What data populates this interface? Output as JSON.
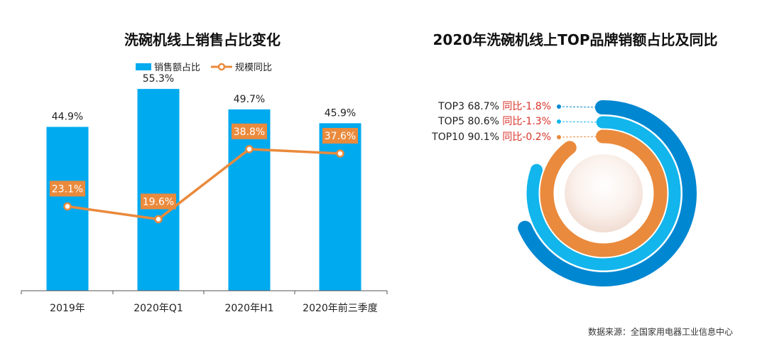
{
  "colors": {
    "blue_bar": "#00AAEF",
    "orange": "#EA8A3C",
    "ring_outer": "#0087D1",
    "ring_middle": "#12B5EC",
    "ring_inner": "#EA8A3C",
    "yoy_red": "#D9342B",
    "text": "#222222"
  },
  "chart_data": [
    {
      "type": "bar",
      "title": "洗碗机线上销售占比变化",
      "categories": [
        "2019年",
        "2020年Q1",
        "2020年H1",
        "2020年前三季度"
      ],
      "series": [
        {
          "name": "销售额占比",
          "kind": "bar",
          "values": [
            44.9,
            55.3,
            49.7,
            45.9
          ],
          "labels": [
            "44.9%",
            "55.3%",
            "49.7%",
            "45.9%"
          ]
        },
        {
          "name": "规模同比",
          "kind": "line",
          "values": [
            23.1,
            19.6,
            38.8,
            37.6
          ],
          "labels": [
            "23.1%",
            "19.6%",
            "38.8%",
            "37.6%"
          ]
        }
      ],
      "ylim": [
        0,
        60
      ],
      "grid": false,
      "legend": "top-center"
    },
    {
      "type": "pie",
      "title": "2020年洗碗机线上TOP品牌销额占比及同比",
      "categories": [
        "TOP3",
        "TOP5",
        "TOP10"
      ],
      "values": [
        68.7,
        80.6,
        90.1
      ],
      "share_labels": [
        "68.7%",
        "80.6%",
        "90.1%"
      ],
      "yoy_labels": [
        "同比-1.8%",
        "同比-1.3%",
        "同比-0.2%"
      ],
      "yoy_values": [
        -1.8,
        -1.3,
        -0.2
      ]
    }
  ],
  "footer": {
    "source": "数据来源：全国家用电器工业信息中心"
  }
}
